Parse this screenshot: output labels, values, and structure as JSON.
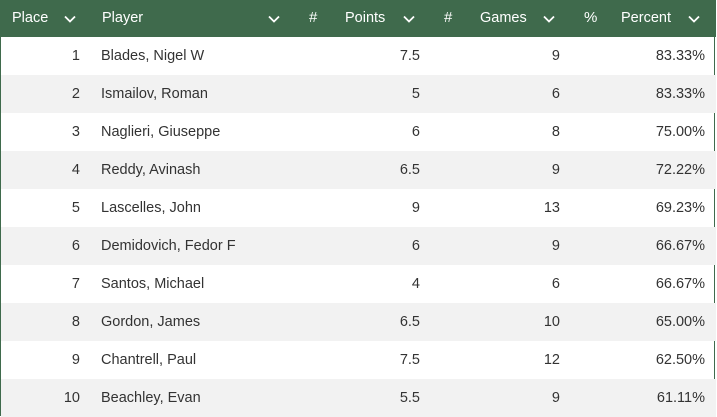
{
  "header": {
    "place": "Place",
    "player": "Player",
    "points_hash": "#",
    "points": "Points",
    "games_hash": "#",
    "games": "Games",
    "percent_symbol": "%",
    "percent": "Percent",
    "sort_icon": "chevron-down-icon"
  },
  "colors": {
    "header_bg": "#3f6a4c",
    "header_text": "#ffffff",
    "row_alt_bg": "#f2f2f2",
    "text": "#333333"
  },
  "rows": [
    {
      "place": "1",
      "player": "Blades, Nigel W",
      "points": "7.5",
      "games": "9",
      "percent": "83.33%"
    },
    {
      "place": "2",
      "player": "Ismailov, Roman",
      "points": "5",
      "games": "6",
      "percent": "83.33%"
    },
    {
      "place": "3",
      "player": "Naglieri, Giuseppe",
      "points": "6",
      "games": "8",
      "percent": "75.00%"
    },
    {
      "place": "4",
      "player": "Reddy, Avinash",
      "points": "6.5",
      "games": "9",
      "percent": "72.22%"
    },
    {
      "place": "5",
      "player": "Lascelles, John",
      "points": "9",
      "games": "13",
      "percent": "69.23%"
    },
    {
      "place": "6",
      "player": "Demidovich, Fedor F",
      "points": "6",
      "games": "9",
      "percent": "66.67%"
    },
    {
      "place": "7",
      "player": "Santos, Michael",
      "points": "4",
      "games": "6",
      "percent": "66.67%"
    },
    {
      "place": "8",
      "player": "Gordon, James",
      "points": "6.5",
      "games": "10",
      "percent": "65.00%"
    },
    {
      "place": "9",
      "player": "Chantrell, Paul",
      "points": "7.5",
      "games": "12",
      "percent": "62.50%"
    },
    {
      "place": "10",
      "player": "Beachley, Evan",
      "points": "5.5",
      "games": "9",
      "percent": "61.11%"
    }
  ]
}
